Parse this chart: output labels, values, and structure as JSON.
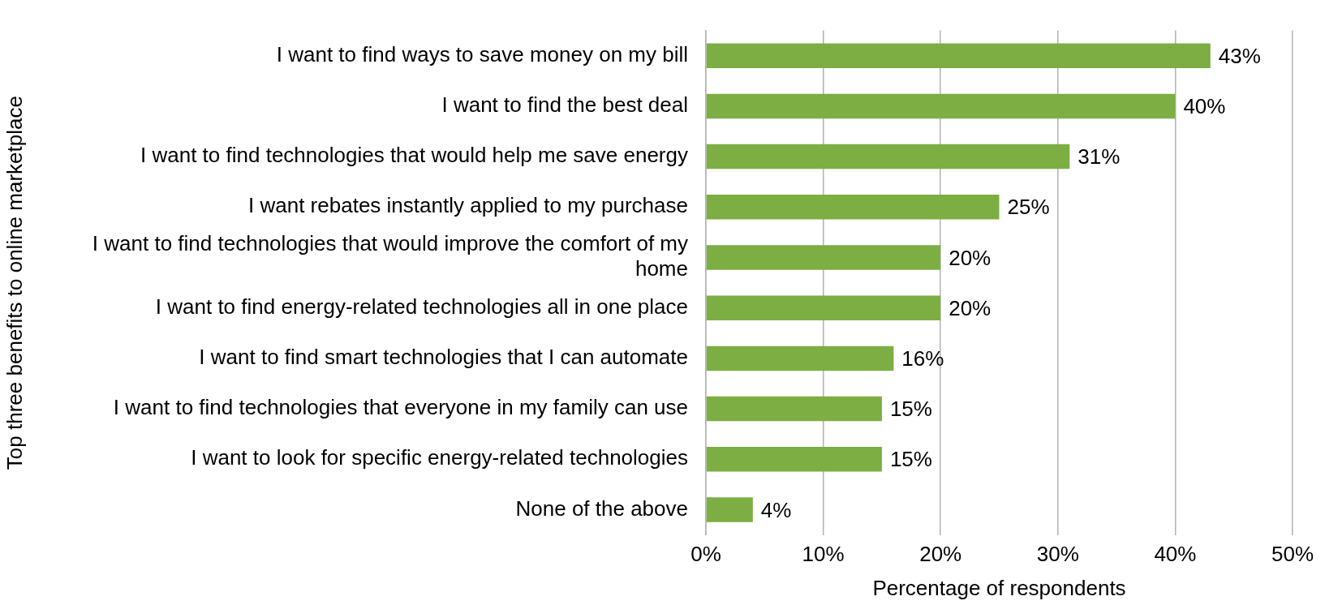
{
  "chart_data": {
    "type": "bar",
    "orientation": "horizontal",
    "xlabel": "Percentage of respondents",
    "ylabel": "Top three benefits to online marketplace",
    "categories": [
      "I want to find ways to save money on my bill",
      "I want to find the best deal",
      "I want to find technologies that would help me save energy",
      "I want rebates instantly applied to my purchase",
      "I want to find technologies that would improve the comfort of my home",
      "I want to find energy-related technologies all in one place",
      "I want to find smart technologies that I can automate",
      "I want to find technologies that everyone in my family can use",
      "I want to look for specific energy-related technologies",
      "None of the above"
    ],
    "values": [
      43,
      40,
      31,
      25,
      20,
      20,
      16,
      15,
      15,
      4
    ],
    "value_labels": [
      "43%",
      "40%",
      "31%",
      "25%",
      "20%",
      "20%",
      "16%",
      "15%",
      "15%",
      "4%"
    ],
    "color": "#7cae43",
    "xlim": [
      0,
      50
    ],
    "xticks": [
      {
        "value": 0,
        "label": "0%"
      },
      {
        "value": 10,
        "label": "10%"
      },
      {
        "value": 20,
        "label": "20%"
      },
      {
        "value": 30,
        "label": "30%"
      },
      {
        "value": 40,
        "label": "40%"
      },
      {
        "value": 50,
        "label": "50%"
      }
    ],
    "grid": "x",
    "legend": false
  }
}
